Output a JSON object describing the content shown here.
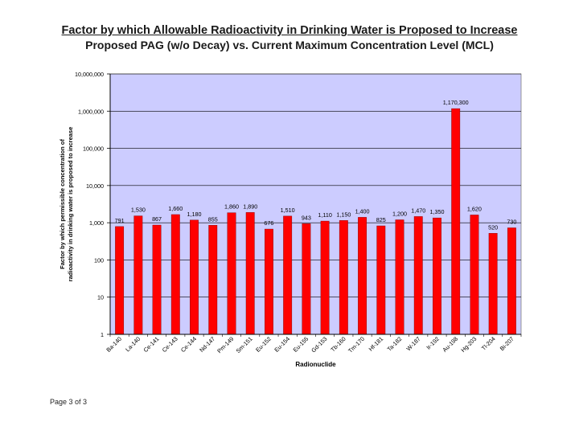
{
  "page": {
    "title_line1": "Factor by which Allowable Radioactivity in Drinking Water is Proposed to Increase",
    "title_line2": "Proposed PAG (w/o Decay) vs. Current Maximum Concentration Level (MCL)",
    "footer": "Page 3 of 3"
  },
  "colors": {
    "plot_background": "#ccccff",
    "bar": "#ff0000",
    "gridline": "#000000"
  },
  "chart_data": {
    "type": "bar",
    "scale": "log",
    "title": "Factor by which Allowable Radioactivity in Drinking Water is Proposed to Increase",
    "subtitle": "Proposed PAG (w/o Decay) vs. Current Maximum Concentration Level (MCL)",
    "xlabel": "Radionuclide",
    "ylabel_lines": [
      "Factor by which permissible concentration of",
      "radioactivity in drinking water is proposed to increase"
    ],
    "ylim": [
      1,
      10000000
    ],
    "yticks": [
      1,
      10,
      100,
      1000,
      10000,
      100000,
      1000000,
      10000000
    ],
    "ytick_labels": [
      "1",
      "10",
      "100",
      "1,000",
      "10,000",
      "100,000",
      "1,000,000",
      "10,000,000"
    ],
    "categories": [
      "Ba-140",
      "La-140",
      "Ce-141",
      "Ce-143",
      "Ce-144",
      "Nd-147",
      "Pm-149",
      "Sm-151",
      "Eu-152",
      "Eu-154",
      "Eu-155",
      "Gd-153",
      "Tb-160",
      "Tm-170",
      "Hf-181",
      "Ta-182",
      "W-187",
      "Ir-192",
      "Au-198",
      "Hg-203",
      "Tl-204",
      "Bi-207"
    ],
    "values": [
      791,
      1530,
      867,
      1660,
      1180,
      855,
      1860,
      1890,
      676,
      1510,
      943,
      1110,
      1150,
      1400,
      825,
      1200,
      1470,
      1350,
      1170300,
      1620,
      520,
      730
    ],
    "data_labels": [
      "791",
      "1,530",
      "867",
      "1,660",
      "1,180",
      "855",
      "1,860",
      "1,890",
      "676",
      "1,510",
      "943",
      "1,110",
      "1,150",
      "1,400",
      "825",
      "1,200",
      "1,470",
      "1,350",
      "1,170,300",
      "1,620",
      "520",
      "730"
    ]
  }
}
